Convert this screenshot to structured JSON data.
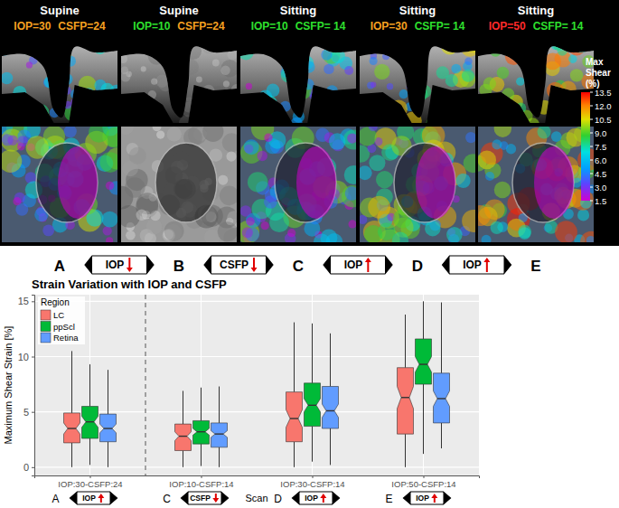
{
  "top_panel": {
    "panels": [
      {
        "posture": "Supine",
        "iop": "IOP=30",
        "iop_color": "#f5a020",
        "csfp": "CSFP=24",
        "csfp_color": "#f5a020",
        "strain": true
      },
      {
        "posture": "Supine",
        "iop": "IOP=10",
        "iop_color": "#2ee02e",
        "csfp": "CSFP=24",
        "csfp_color": "#f5a020",
        "strain": false
      },
      {
        "posture": "Sitting",
        "iop": "IOP=10",
        "iop_color": "#2ee02e",
        "csfp": "CSFP= 14",
        "csfp_color": "#2ee02e",
        "strain": true
      },
      {
        "posture": "Sitting",
        "iop": "IOP=30",
        "iop_color": "#f5a020",
        "csfp": "CSFP= 14",
        "csfp_color": "#2ee02e",
        "strain": true
      },
      {
        "posture": "Sitting",
        "iop": "IOP=50",
        "iop_color": "#ff2a2a",
        "csfp": "CSFP= 14",
        "csfp_color": "#2ee02e",
        "strain": true
      }
    ],
    "colorbar": {
      "title": "Max Shear (%)",
      "range": [
        1.5,
        13.5
      ],
      "ticks": [
        13.5,
        {
          "value": 12,
          "label": "12.0"
        },
        10.5,
        {
          "value": 9,
          "label": "9.0"
        },
        7.5,
        {
          "value": 6,
          "label": "6.0"
        },
        4.5,
        {
          "value": 3,
          "label": "3.0"
        },
        1.5
      ]
    },
    "transitions": {
      "letters": [
        "A",
        "B",
        "C",
        "D",
        "E"
      ],
      "changes": [
        {
          "label": "IOP",
          "direction": "down"
        },
        {
          "label": "CSFP",
          "direction": "down"
        },
        {
          "label": "IOP",
          "direction": "up"
        },
        {
          "label": "IOP",
          "direction": "up"
        }
      ]
    }
  },
  "chart_data": {
    "type": "box",
    "title": "Strain Variation with IOP and CSFP",
    "x_label": "Scan",
    "y_label": "Maximum Shear Strain [%]",
    "categories": [
      "IOP:30-CSFP:24",
      "IOP:10-CSFP:14",
      "IOP:30-CSFP:14",
      "IOP:50-CSFP:14"
    ],
    "ylim": [
      -0.75,
      15.6
    ],
    "yticks": [
      0,
      5,
      10,
      15
    ],
    "grid": true,
    "legend": "top-left",
    "legend_title": "Region",
    "series": [
      {
        "name": "LC",
        "color": "#F8766D",
        "min": [
          0,
          0,
          0,
          0
        ],
        "q1": [
          2.2,
          1.5,
          2.3,
          3.0
        ],
        "median": [
          3.5,
          2.8,
          4.4,
          6.3
        ],
        "q3": [
          4.9,
          3.9,
          6.8,
          9.0
        ],
        "max": [
          10.5,
          6.9,
          13.1,
          13.8
        ],
        "notch_low": [
          3.0,
          2.4,
          3.6,
          5.3
        ],
        "notch_high": [
          4.0,
          3.2,
          5.2,
          7.3
        ]
      },
      {
        "name": "ppScl",
        "color": "#00BA38",
        "min": [
          0.2,
          0.1,
          0.5,
          1.2
        ],
        "q1": [
          2.6,
          2.1,
          3.7,
          7.5
        ],
        "median": [
          4.1,
          3.2,
          5.6,
          9.3
        ],
        "q3": [
          5.5,
          4.2,
          7.6,
          11.6
        ],
        "max": [
          9.3,
          7.2,
          13.0,
          15.0
        ],
        "notch_low": [
          3.6,
          2.9,
          5.0,
          8.6
        ],
        "notch_high": [
          4.6,
          3.5,
          6.2,
          10.0
        ]
      },
      {
        "name": "Retina",
        "color": "#619CFF",
        "min": [
          0,
          0,
          0.2,
          1.7
        ],
        "q1": [
          2.3,
          1.8,
          3.5,
          4.0
        ],
        "median": [
          3.5,
          3.0,
          5.1,
          6.2
        ],
        "q3": [
          4.8,
          4.0,
          7.3,
          8.5
        ],
        "max": [
          8.8,
          7.3,
          12.1,
          14.9
        ],
        "notch_low": [
          3.1,
          2.7,
          4.5,
          5.5
        ],
        "notch_high": [
          3.9,
          3.3,
          5.7,
          6.9
        ]
      }
    ],
    "scan_icons": [
      {
        "letter": "A",
        "label": "IOP",
        "direction": "up"
      },
      {
        "letter": "C",
        "label": "CSFP",
        "direction": "down"
      },
      {
        "letter": "D",
        "label": "IOP",
        "direction": "up"
      },
      {
        "letter": "E",
        "label": "IOP",
        "direction": "up"
      }
    ]
  }
}
